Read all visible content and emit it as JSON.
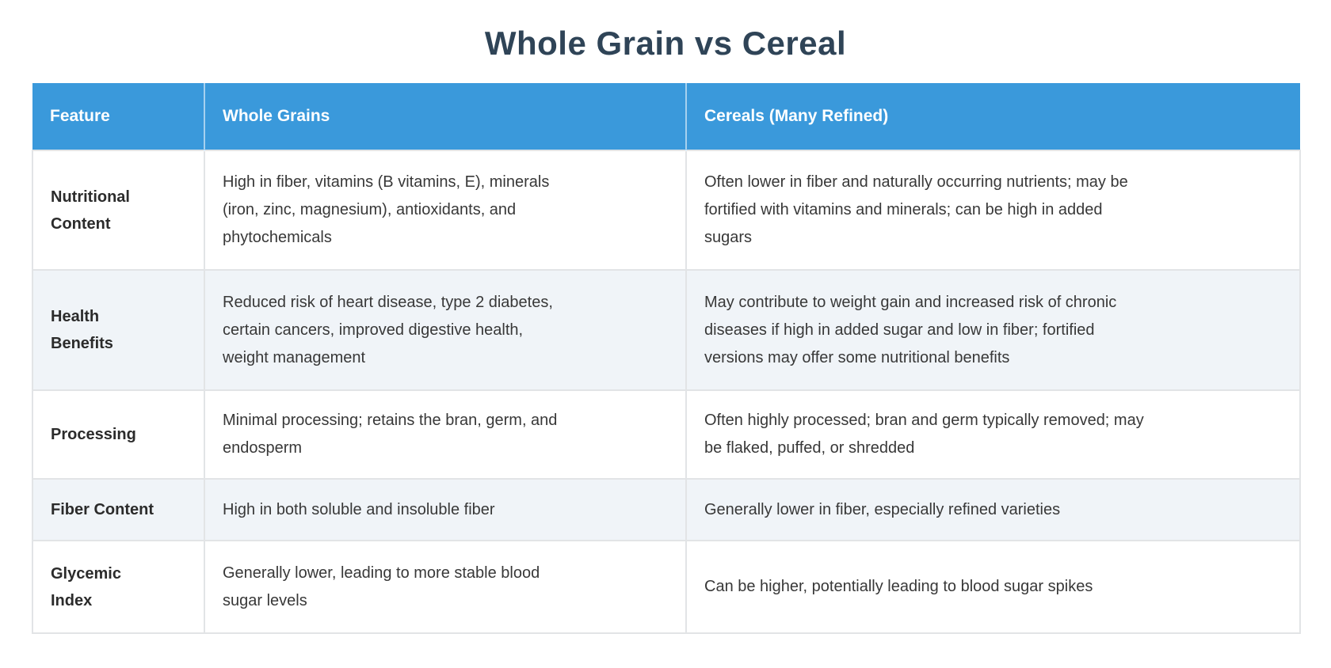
{
  "page": {
    "title": "Whole Grain vs Cereal"
  },
  "colors": {
    "header_bg": "#3a99db",
    "header_text": "#ffffff",
    "title_text": "#2f4457",
    "stripe_bg": "#f0f4f8",
    "row_bg": "#ffffff",
    "border": "#e2e4e6",
    "label_text": "#2b2b2b",
    "body_text": "#383838"
  },
  "table": {
    "headers": [
      "Feature",
      "Whole Grains",
      "Cereals (Many Refined)"
    ],
    "rows": [
      {
        "feature": "Nutritional\nContent",
        "whole_grains": "High in fiber, vitamins (B vitamins, E), minerals\n(iron, zinc, magnesium), antioxidants, and\nphytochemicals",
        "cereals": "Often lower in fiber and naturally occurring nutrients; may be\nfortified with vitamins and minerals; can be high in added\nsugars"
      },
      {
        "feature": "Health\nBenefits",
        "whole_grains": "Reduced risk of heart disease, type 2 diabetes,\ncertain cancers, improved digestive health,\nweight management",
        "cereals": "May contribute to weight gain and increased risk of chronic\ndiseases if high in added sugar and low in fiber; fortified\nversions may offer some nutritional benefits"
      },
      {
        "feature": "Processing",
        "whole_grains": "Minimal processing; retains the bran, germ, and\nendosperm",
        "cereals": "Often highly processed; bran and germ typically removed; may\nbe flaked, puffed, or shredded"
      },
      {
        "feature": "Fiber Content",
        "whole_grains": "High in both soluble and insoluble fiber",
        "cereals": "Generally lower in fiber, especially refined varieties"
      },
      {
        "feature": "Glycemic\nIndex",
        "whole_grains": "Generally lower, leading to more stable blood\nsugar levels",
        "cereals": "Can be higher, potentially leading to blood sugar spikes"
      }
    ]
  }
}
